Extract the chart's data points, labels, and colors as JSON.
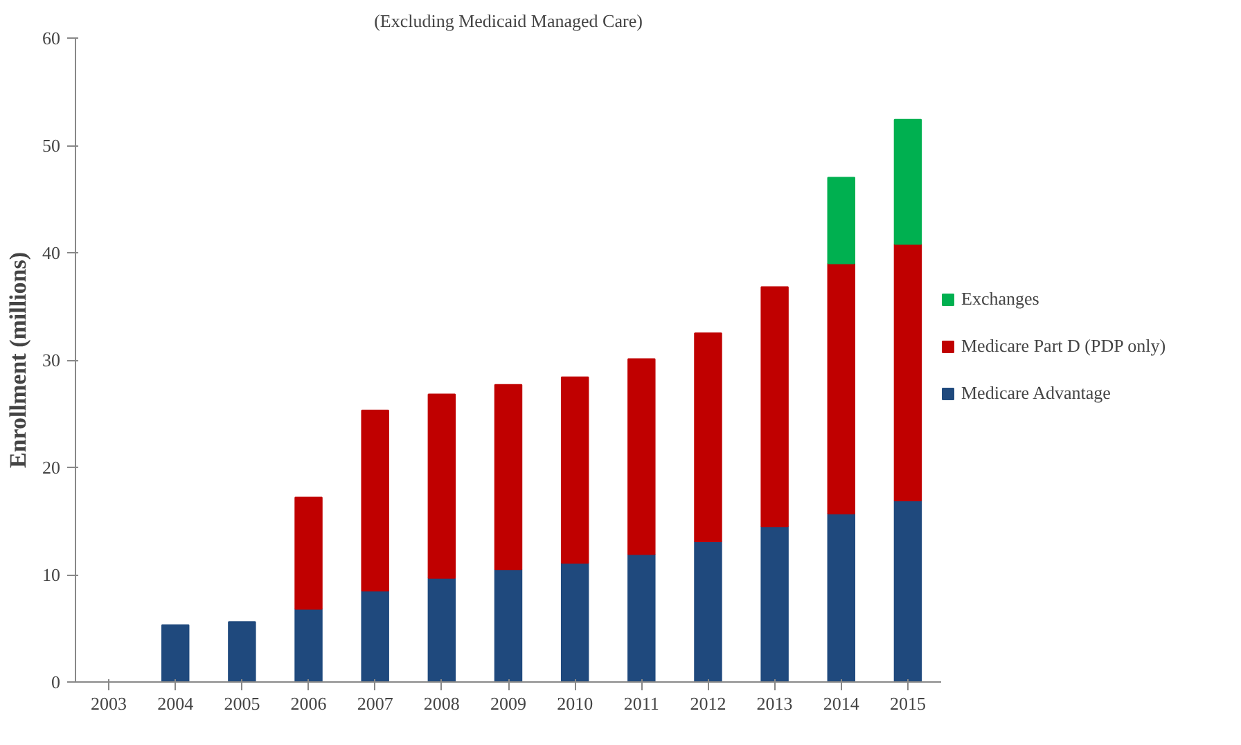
{
  "chart_data": {
    "type": "bar",
    "stacked": true,
    "subtitle": "(Excluding Medicaid Managed Care)",
    "ylabel": "Enrollment (millions)",
    "categories": [
      "2003",
      "2004",
      "2005",
      "2006",
      "2007",
      "2008",
      "2009",
      "2010",
      "2011",
      "2012",
      "2013",
      "2014",
      "2015"
    ],
    "series": [
      {
        "name": "Medicare Advantage",
        "color": "#1f497d",
        "values": [
          null,
          5.3,
          5.6,
          6.8,
          8.5,
          9.7,
          10.5,
          11.1,
          11.9,
          13.1,
          14.5,
          15.7,
          16.9
        ]
      },
      {
        "name": "Medicare Part D (PDP only)",
        "color": "#c00000",
        "values": [
          null,
          null,
          null,
          10.4,
          16.8,
          17.1,
          17.2,
          17.3,
          18.2,
          19.4,
          22.3,
          23.3,
          23.9
        ]
      },
      {
        "name": "Exchanges",
        "color": "#00b050",
        "values": [
          null,
          null,
          null,
          null,
          null,
          null,
          null,
          null,
          null,
          null,
          null,
          8.0,
          11.6
        ]
      }
    ],
    "ylim": [
      0,
      60
    ],
    "yticks": [
      0,
      10,
      20,
      30,
      40,
      50,
      60
    ],
    "grid": false,
    "legend": "right"
  }
}
